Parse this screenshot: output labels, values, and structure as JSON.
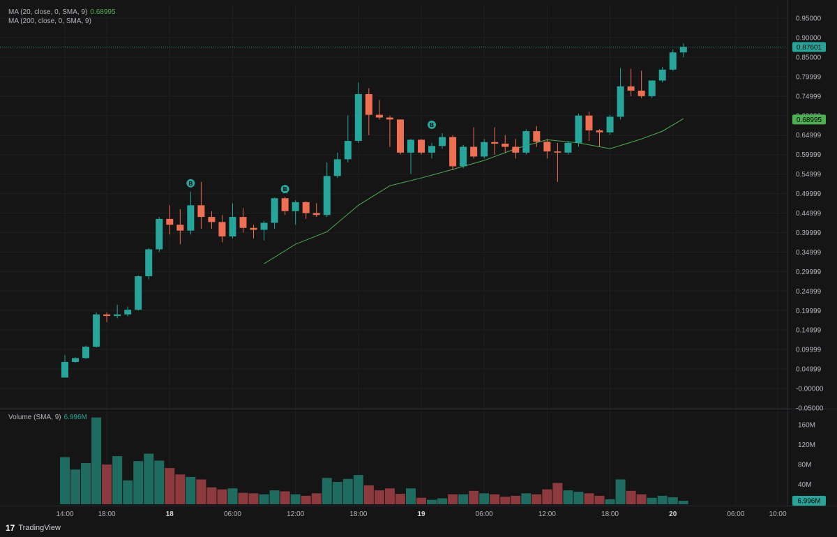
{
  "legend": {
    "ma20_label": "MA (20, close, 0, SMA, 9)",
    "ma20_value": "0.68995",
    "ma200_label": "MA (200, close, 0, SMA, 9)",
    "volume_label": "Volume (SMA, 9)",
    "volume_value": "6.996M"
  },
  "branding": {
    "logo_mark": "17",
    "name": "TradingView"
  },
  "colors": {
    "up": "#26a69a",
    "down": "#ef6f52",
    "vol_up": "#1e6b60",
    "vol_down": "#8c3a3d",
    "ma20": "#4caf50",
    "bg": "#151515",
    "grid": "#202020",
    "pane_sep": "#2a2e39"
  },
  "chart_data": {
    "type": "candlestick",
    "price_axis": {
      "ticks": [
        "0.95000",
        "0.90000",
        "0.85000",
        "0.79999",
        "0.74999",
        "0.69999",
        "0.64999",
        "0.59999",
        "0.54999",
        "0.49999",
        "0.44999",
        "0.39999",
        "0.34999",
        "0.29999",
        "0.24999",
        "0.19999",
        "0.14999",
        "0.09999",
        "0.04999",
        "-0.00000",
        "-0.05000"
      ],
      "range": [
        -0.05,
        0.95
      ]
    },
    "volume_axis": {
      "ticks": [
        "160M",
        "120M",
        "80M",
        "40M"
      ],
      "range": [
        0,
        180
      ]
    },
    "time_axis": {
      "labels": [
        {
          "text": "14:00",
          "major": false,
          "index": 0
        },
        {
          "text": "18:00",
          "major": false,
          "index": 4
        },
        {
          "text": "18",
          "major": true,
          "index": 10
        },
        {
          "text": "06:00",
          "major": false,
          "index": 16
        },
        {
          "text": "12:00",
          "major": false,
          "index": 22
        },
        {
          "text": "18:00",
          "major": false,
          "index": 28
        },
        {
          "text": "19",
          "major": true,
          "index": 34
        },
        {
          "text": "06:00",
          "major": false,
          "index": 40
        },
        {
          "text": "12:00",
          "major": false,
          "index": 46
        },
        {
          "text": "18:00",
          "major": false,
          "index": 52
        },
        {
          "text": "20",
          "major": true,
          "index": 58
        },
        {
          "text": "06:00",
          "major": false,
          "index": 64
        },
        {
          "text": "10:00",
          "major": false,
          "index": 68
        }
      ]
    },
    "last_price": "0.87601",
    "ma_badge": "0.68995",
    "volume_badge": "6.996M",
    "candles": [
      {
        "o": 0.028,
        "h": 0.085,
        "l": 0.028,
        "c": 0.068,
        "v": 95
      },
      {
        "o": 0.068,
        "h": 0.08,
        "l": 0.066,
        "c": 0.078,
        "v": 70
      },
      {
        "o": 0.078,
        "h": 0.11,
        "l": 0.076,
        "c": 0.107,
        "v": 83
      },
      {
        "o": 0.107,
        "h": 0.195,
        "l": 0.105,
        "c": 0.19,
        "v": 175
      },
      {
        "o": 0.19,
        "h": 0.195,
        "l": 0.17,
        "c": 0.186,
        "v": 80
      },
      {
        "o": 0.186,
        "h": 0.215,
        "l": 0.18,
        "c": 0.19,
        "v": 97
      },
      {
        "o": 0.19,
        "h": 0.21,
        "l": 0.185,
        "c": 0.202,
        "v": 48
      },
      {
        "o": 0.202,
        "h": 0.29,
        "l": 0.2,
        "c": 0.288,
        "v": 87
      },
      {
        "o": 0.288,
        "h": 0.36,
        "l": 0.28,
        "c": 0.357,
        "v": 102
      },
      {
        "o": 0.357,
        "h": 0.44,
        "l": 0.35,
        "c": 0.435,
        "v": 88
      },
      {
        "o": 0.435,
        "h": 0.47,
        "l": 0.395,
        "c": 0.42,
        "v": 73
      },
      {
        "o": 0.42,
        "h": 0.46,
        "l": 0.37,
        "c": 0.405,
        "v": 60
      },
      {
        "o": 0.405,
        "h": 0.505,
        "l": 0.395,
        "c": 0.47,
        "v": 55
      },
      {
        "o": 0.47,
        "h": 0.53,
        "l": 0.41,
        "c": 0.44,
        "v": 50
      },
      {
        "o": 0.44,
        "h": 0.455,
        "l": 0.41,
        "c": 0.427,
        "v": 34
      },
      {
        "o": 0.427,
        "h": 0.445,
        "l": 0.375,
        "c": 0.39,
        "v": 30
      },
      {
        "o": 0.39,
        "h": 0.475,
        "l": 0.385,
        "c": 0.44,
        "v": 32
      },
      {
        "o": 0.44,
        "h": 0.463,
        "l": 0.4,
        "c": 0.412,
        "v": 23
      },
      {
        "o": 0.412,
        "h": 0.42,
        "l": 0.385,
        "c": 0.407,
        "v": 22
      },
      {
        "o": 0.407,
        "h": 0.43,
        "l": 0.38,
        "c": 0.425,
        "v": 20
      },
      {
        "o": 0.425,
        "h": 0.49,
        "l": 0.41,
        "c": 0.488,
        "v": 28
      },
      {
        "o": 0.488,
        "h": 0.492,
        "l": 0.445,
        "c": 0.455,
        "v": 26
      },
      {
        "o": 0.455,
        "h": 0.483,
        "l": 0.42,
        "c": 0.478,
        "v": 20
      },
      {
        "o": 0.478,
        "h": 0.48,
        "l": 0.435,
        "c": 0.45,
        "v": 17
      },
      {
        "o": 0.45,
        "h": 0.475,
        "l": 0.44,
        "c": 0.445,
        "v": 22
      },
      {
        "o": 0.445,
        "h": 0.58,
        "l": 0.44,
        "c": 0.545,
        "v": 53
      },
      {
        "o": 0.545,
        "h": 0.605,
        "l": 0.54,
        "c": 0.588,
        "v": 45
      },
      {
        "o": 0.588,
        "h": 0.7,
        "l": 0.58,
        "c": 0.635,
        "v": 51
      },
      {
        "o": 0.635,
        "h": 0.785,
        "l": 0.63,
        "c": 0.755,
        "v": 59
      },
      {
        "o": 0.755,
        "h": 0.77,
        "l": 0.65,
        "c": 0.702,
        "v": 38
      },
      {
        "o": 0.702,
        "h": 0.74,
        "l": 0.69,
        "c": 0.695,
        "v": 28
      },
      {
        "o": 0.695,
        "h": 0.7,
        "l": 0.62,
        "c": 0.69,
        "v": 32
      },
      {
        "o": 0.69,
        "h": 0.69,
        "l": 0.6,
        "c": 0.605,
        "v": 21
      },
      {
        "o": 0.605,
        "h": 0.64,
        "l": 0.55,
        "c": 0.638,
        "v": 32
      },
      {
        "o": 0.638,
        "h": 0.64,
        "l": 0.6,
        "c": 0.605,
        "v": 13
      },
      {
        "o": 0.605,
        "h": 0.63,
        "l": 0.59,
        "c": 0.622,
        "v": 9
      },
      {
        "o": 0.622,
        "h": 0.655,
        "l": 0.615,
        "c": 0.645,
        "v": 12
      },
      {
        "o": 0.645,
        "h": 0.65,
        "l": 0.56,
        "c": 0.57,
        "v": 20
      },
      {
        "o": 0.57,
        "h": 0.625,
        "l": 0.565,
        "c": 0.62,
        "v": 20
      },
      {
        "o": 0.62,
        "h": 0.67,
        "l": 0.59,
        "c": 0.595,
        "v": 27
      },
      {
        "o": 0.595,
        "h": 0.64,
        "l": 0.59,
        "c": 0.632,
        "v": 22
      },
      {
        "o": 0.632,
        "h": 0.67,
        "l": 0.6,
        "c": 0.628,
        "v": 20
      },
      {
        "o": 0.628,
        "h": 0.65,
        "l": 0.605,
        "c": 0.62,
        "v": 15
      },
      {
        "o": 0.62,
        "h": 0.64,
        "l": 0.59,
        "c": 0.605,
        "v": 17
      },
      {
        "o": 0.605,
        "h": 0.665,
        "l": 0.6,
        "c": 0.66,
        "v": 22
      },
      {
        "o": 0.66,
        "h": 0.673,
        "l": 0.62,
        "c": 0.633,
        "v": 20
      },
      {
        "o": 0.633,
        "h": 0.64,
        "l": 0.59,
        "c": 0.608,
        "v": 30
      },
      {
        "o": 0.608,
        "h": 0.63,
        "l": 0.53,
        "c": 0.605,
        "v": 43
      },
      {
        "o": 0.605,
        "h": 0.635,
        "l": 0.6,
        "c": 0.63,
        "v": 28
      },
      {
        "o": 0.63,
        "h": 0.705,
        "l": 0.62,
        "c": 0.7,
        "v": 25
      },
      {
        "o": 0.7,
        "h": 0.71,
        "l": 0.635,
        "c": 0.662,
        "v": 22
      },
      {
        "o": 0.662,
        "h": 0.665,
        "l": 0.62,
        "c": 0.657,
        "v": 17
      },
      {
        "o": 0.657,
        "h": 0.702,
        "l": 0.65,
        "c": 0.697,
        "v": 10
      },
      {
        "o": 0.697,
        "h": 0.822,
        "l": 0.69,
        "c": 0.775,
        "v": 50
      },
      {
        "o": 0.775,
        "h": 0.82,
        "l": 0.75,
        "c": 0.764,
        "v": 27
      },
      {
        "o": 0.764,
        "h": 0.815,
        "l": 0.745,
        "c": 0.75,
        "v": 20
      },
      {
        "o": 0.75,
        "h": 0.79,
        "l": 0.745,
        "c": 0.79,
        "v": 13
      },
      {
        "o": 0.79,
        "h": 0.825,
        "l": 0.785,
        "c": 0.818,
        "v": 17
      },
      {
        "o": 0.818,
        "h": 0.87,
        "l": 0.815,
        "c": 0.862,
        "v": 14
      },
      {
        "o": 0.862,
        "h": 0.885,
        "l": 0.85,
        "c": 0.876,
        "v": 7
      }
    ],
    "ma20": [
      {
        "i": 19,
        "v": 0.32
      },
      {
        "i": 22,
        "v": 0.37
      },
      {
        "i": 25,
        "v": 0.402
      },
      {
        "i": 28,
        "v": 0.47
      },
      {
        "i": 31,
        "v": 0.52
      },
      {
        "i": 34,
        "v": 0.54
      },
      {
        "i": 37,
        "v": 0.562
      },
      {
        "i": 40,
        "v": 0.585
      },
      {
        "i": 43,
        "v": 0.615
      },
      {
        "i": 46,
        "v": 0.638
      },
      {
        "i": 49,
        "v": 0.63
      },
      {
        "i": 52,
        "v": 0.615
      },
      {
        "i": 55,
        "v": 0.64
      },
      {
        "i": 57,
        "v": 0.66
      },
      {
        "i": 59,
        "v": 0.692
      }
    ],
    "buy_markers": [
      {
        "i": 12,
        "label": "B",
        "price": 0.505
      },
      {
        "i": 21,
        "label": "B",
        "price": 0.49
      },
      {
        "i": 35,
        "label": "B",
        "price": 0.655
      }
    ]
  }
}
